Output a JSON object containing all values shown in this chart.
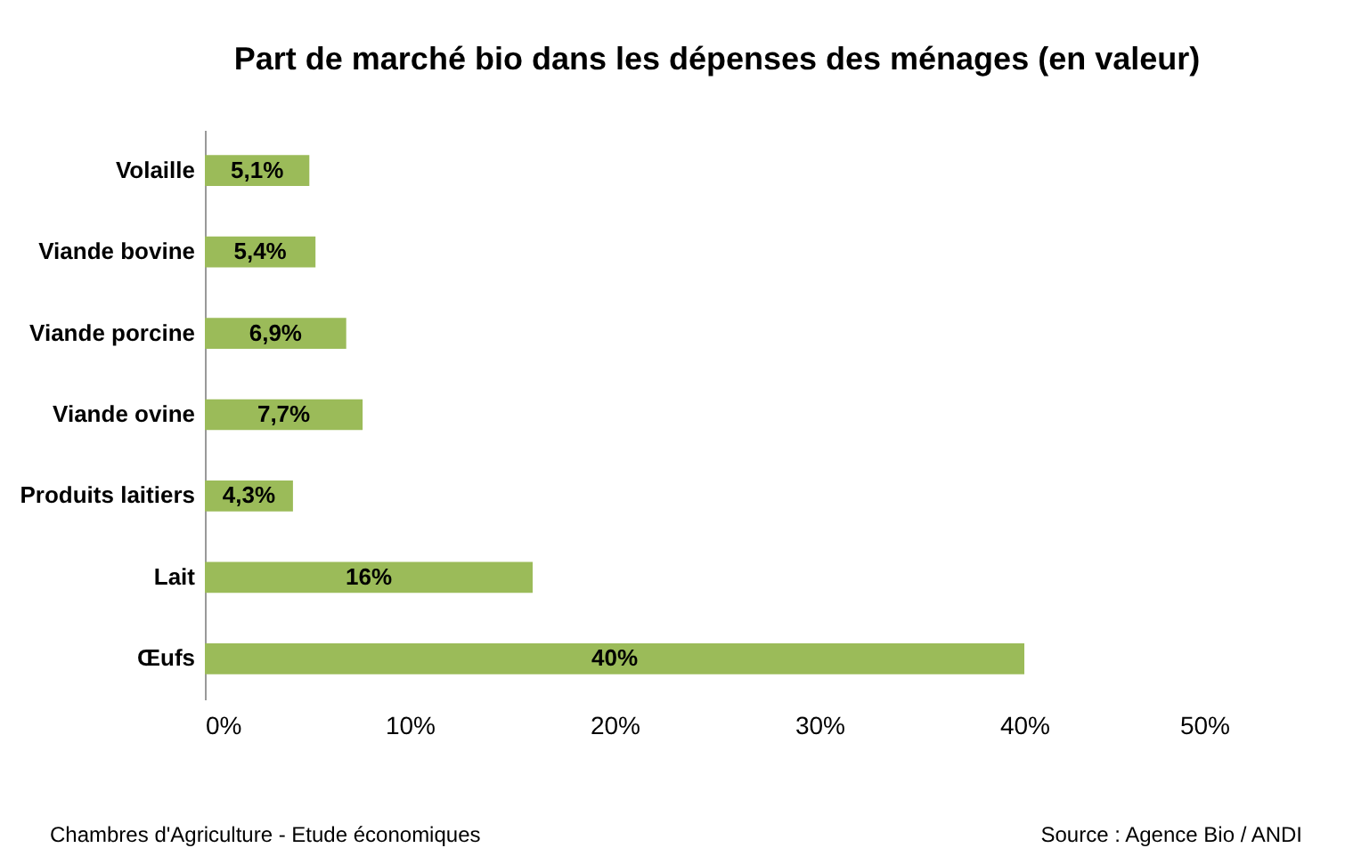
{
  "chart_data": {
    "type": "bar",
    "orientation": "horizontal",
    "title": "Part de marché bio dans les dépenses des ménages (en valeur)",
    "categories": [
      "Volaille",
      "Viande bovine",
      "Viande porcine",
      "Viande ovine",
      "Produits laitiers",
      "Lait",
      "Œufs"
    ],
    "values": [
      5.1,
      5.4,
      6.9,
      7.7,
      4.3,
      16,
      40
    ],
    "value_labels": [
      "5,1%",
      "5,4%",
      "6,9%",
      "7,7%",
      "4,3%",
      "16%",
      "40%"
    ],
    "color": "#9bbb59",
    "xlim": [
      0,
      50
    ],
    "xticks": [
      {
        "value": 0,
        "label": "0%"
      },
      {
        "value": 10,
        "label": "10%"
      },
      {
        "value": 20,
        "label": "20%"
      },
      {
        "value": 30,
        "label": "30%"
      },
      {
        "value": 40,
        "label": "40%"
      },
      {
        "value": 50,
        "label": "50%"
      }
    ],
    "grid": false,
    "annotations": [
      "Chambres d'Agriculture - Etude économiques",
      "Source : Agence Bio / ANDI"
    ]
  }
}
